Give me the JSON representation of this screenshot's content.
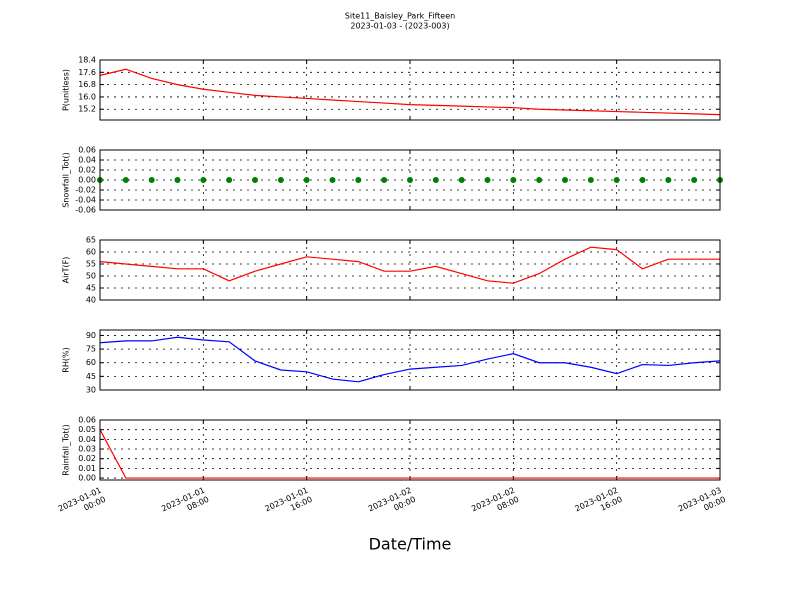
{
  "chart_data": [
    {
      "type": "line",
      "title": "Site11_Baisley_Park_Fifteen",
      "subtitle": "2023-01-03 - (2023-003)",
      "ylabel": "P(unitless)",
      "color": "#ff0000",
      "grid": true,
      "x": [
        "2023-01-01 00:00",
        "2023-01-01 02:00",
        "2023-01-01 04:00",
        "2023-01-01 06:00",
        "2023-01-01 08:00",
        "2023-01-01 10:00",
        "2023-01-01 12:00",
        "2023-01-01 14:00",
        "2023-01-01 16:00",
        "2023-01-01 18:00",
        "2023-01-01 20:00",
        "2023-01-01 22:00",
        "2023-01-02 00:00",
        "2023-01-02 02:00",
        "2023-01-02 04:00",
        "2023-01-02 06:00",
        "2023-01-02 08:00",
        "2023-01-02 10:00",
        "2023-01-02 12:00",
        "2023-01-02 14:00",
        "2023-01-02 16:00",
        "2023-01-02 18:00",
        "2023-01-02 20:00",
        "2023-01-02 22:00",
        "2023-01-03 00:00"
      ],
      "values": [
        17.4,
        17.8,
        17.2,
        16.8,
        16.5,
        16.3,
        16.1,
        16.0,
        15.9,
        15.8,
        15.7,
        15.6,
        15.5,
        15.45,
        15.4,
        15.35,
        15.3,
        15.2,
        15.15,
        15.1,
        15.05,
        15.0,
        14.95,
        14.9,
        14.85
      ],
      "xlim": [
        "2023-01-01 00:00",
        "2023-01-03 00:00"
      ],
      "xticks": [
        "2023-01-01 00:00",
        "2023-01-01 08:00",
        "2023-01-01 16:00",
        "2023-01-02 00:00",
        "2023-01-02 08:00",
        "2023-01-02 16:00",
        "2023-01-03 00:00"
      ],
      "ylim": [
        14.5,
        18.4
      ],
      "yticks": [
        15.2,
        {
          "value": 16,
          "label": "16.0"
        },
        16.8,
        17.6,
        18.4
      ]
    },
    {
      "type": "scatter",
      "ylabel": "Snowfall_Tot()",
      "color": "#008000",
      "grid": true,
      "x": [
        "2023-01-01 00:00",
        "2023-01-01 02:00",
        "2023-01-01 04:00",
        "2023-01-01 06:00",
        "2023-01-01 08:00",
        "2023-01-01 10:00",
        "2023-01-01 12:00",
        "2023-01-01 14:00",
        "2023-01-01 16:00",
        "2023-01-01 18:00",
        "2023-01-01 20:00",
        "2023-01-01 22:00",
        "2023-01-02 00:00",
        "2023-01-02 02:00",
        "2023-01-02 04:00",
        "2023-01-02 06:00",
        "2023-01-02 08:00",
        "2023-01-02 10:00",
        "2023-01-02 12:00",
        "2023-01-02 14:00",
        "2023-01-02 16:00",
        "2023-01-02 18:00",
        "2023-01-02 20:00",
        "2023-01-02 22:00",
        "2023-01-03 00:00"
      ],
      "values": [
        0,
        0,
        0,
        0,
        0,
        0,
        0,
        0,
        0,
        0,
        0,
        0,
        0,
        0,
        0,
        0,
        0,
        0,
        0,
        0,
        0,
        0,
        0,
        0,
        0
      ],
      "xlim": [
        "2023-01-01 00:00",
        "2023-01-03 00:00"
      ],
      "xticks": [
        "2023-01-01 00:00",
        "2023-01-01 08:00",
        "2023-01-01 16:00",
        "2023-01-02 00:00",
        "2023-01-02 08:00",
        "2023-01-02 16:00",
        "2023-01-03 00:00"
      ],
      "ylim": [
        -0.06,
        0.06
      ],
      "yticks": [
        -0.06,
        -0.04,
        -0.02,
        {
          "value": 0,
          "label": "0.00"
        },
        0.02,
        0.04,
        0.06
      ]
    },
    {
      "type": "line",
      "ylabel": "AirT(F)",
      "color": "#ff0000",
      "grid": true,
      "x": [
        "2023-01-01 00:00",
        "2023-01-01 02:00",
        "2023-01-01 04:00",
        "2023-01-01 06:00",
        "2023-01-01 08:00",
        "2023-01-01 10:00",
        "2023-01-01 12:00",
        "2023-01-01 14:00",
        "2023-01-01 16:00",
        "2023-01-01 18:00",
        "2023-01-01 20:00",
        "2023-01-01 22:00",
        "2023-01-02 00:00",
        "2023-01-02 02:00",
        "2023-01-02 04:00",
        "2023-01-02 06:00",
        "2023-01-02 08:00",
        "2023-01-02 10:00",
        "2023-01-02 12:00",
        "2023-01-02 14:00",
        "2023-01-02 16:00",
        "2023-01-02 18:00",
        "2023-01-02 20:00",
        "2023-01-02 22:00",
        "2023-01-03 00:00"
      ],
      "values": [
        56,
        55,
        54,
        53,
        53,
        48,
        52,
        55,
        58,
        57,
        56,
        52,
        52,
        54,
        51,
        48,
        47,
        51,
        57,
        62,
        61,
        53,
        57,
        57,
        57
      ],
      "xlim": [
        "2023-01-01 00:00",
        "2023-01-03 00:00"
      ],
      "xticks": [
        "2023-01-01 00:00",
        "2023-01-01 08:00",
        "2023-01-01 16:00",
        "2023-01-02 00:00",
        "2023-01-02 08:00",
        "2023-01-02 16:00",
        "2023-01-03 00:00"
      ],
      "ylim": [
        40,
        65
      ],
      "yticks": [
        40,
        45,
        50,
        55,
        60,
        65
      ]
    },
    {
      "type": "line",
      "ylabel": "RH(%)",
      "color": "#0000ff",
      "grid": true,
      "x": [
        "2023-01-01 00:00",
        "2023-01-01 02:00",
        "2023-01-01 04:00",
        "2023-01-01 06:00",
        "2023-01-01 08:00",
        "2023-01-01 10:00",
        "2023-01-01 12:00",
        "2023-01-01 14:00",
        "2023-01-01 16:00",
        "2023-01-01 18:00",
        "2023-01-01 20:00",
        "2023-01-01 22:00",
        "2023-01-02 00:00",
        "2023-01-02 02:00",
        "2023-01-02 04:00",
        "2023-01-02 06:00",
        "2023-01-02 08:00",
        "2023-01-02 10:00",
        "2023-01-02 12:00",
        "2023-01-02 14:00",
        "2023-01-02 16:00",
        "2023-01-02 18:00",
        "2023-01-02 20:00",
        "2023-01-02 22:00",
        "2023-01-03 00:00"
      ],
      "values": [
        82,
        84,
        84,
        88,
        85,
        83,
        62,
        52,
        50,
        42,
        39,
        47,
        53,
        55,
        57,
        64,
        70,
        60,
        60,
        55,
        48,
        58,
        57,
        60,
        62
      ],
      "xlim": [
        "2023-01-01 00:00",
        "2023-01-03 00:00"
      ],
      "xticks": [
        "2023-01-01 00:00",
        "2023-01-01 08:00",
        "2023-01-01 16:00",
        "2023-01-02 00:00",
        "2023-01-02 08:00",
        "2023-01-02 16:00",
        "2023-01-03 00:00"
      ],
      "ylim": [
        30,
        96
      ],
      "yticks": [
        30,
        45,
        60,
        75,
        90
      ]
    },
    {
      "type": "line",
      "ylabel": "Rainfall_Tot()",
      "xlabel": "Date/Time",
      "color": "#ff0000",
      "grid": true,
      "x": [
        "2023-01-01 00:00",
        "2023-01-01 02:00",
        "2023-01-01 04:00",
        "2023-01-01 06:00",
        "2023-01-01 08:00",
        "2023-01-01 10:00",
        "2023-01-01 12:00",
        "2023-01-01 14:00",
        "2023-01-01 16:00",
        "2023-01-01 18:00",
        "2023-01-01 20:00",
        "2023-01-01 22:00",
        "2023-01-02 00:00",
        "2023-01-02 02:00",
        "2023-01-02 04:00",
        "2023-01-02 06:00",
        "2023-01-02 08:00",
        "2023-01-02 10:00",
        "2023-01-02 12:00",
        "2023-01-02 14:00",
        "2023-01-02 16:00",
        "2023-01-02 18:00",
        "2023-01-02 20:00",
        "2023-01-02 22:00",
        "2023-01-03 00:00"
      ],
      "values": [
        0.05,
        0,
        0,
        0,
        0,
        0,
        0,
        0,
        0,
        0,
        0,
        0,
        0,
        0,
        0,
        0,
        0,
        0,
        0,
        0,
        0,
        0,
        0,
        0,
        0
      ],
      "xlim": [
        "2023-01-01 00:00",
        "2023-01-03 00:00"
      ],
      "xticks": [
        "2023-01-01 00:00",
        "2023-01-01 08:00",
        "2023-01-01 16:00",
        "2023-01-02 00:00",
        "2023-01-02 08:00",
        "2023-01-02 16:00",
        "2023-01-03 00:00"
      ],
      "ylim": [
        -0.002,
        0.06
      ],
      "yticks": [
        {
          "value": 0,
          "label": "0.00"
        },
        0.01,
        0.02,
        0.03,
        0.04,
        0.05,
        0.06
      ]
    }
  ]
}
